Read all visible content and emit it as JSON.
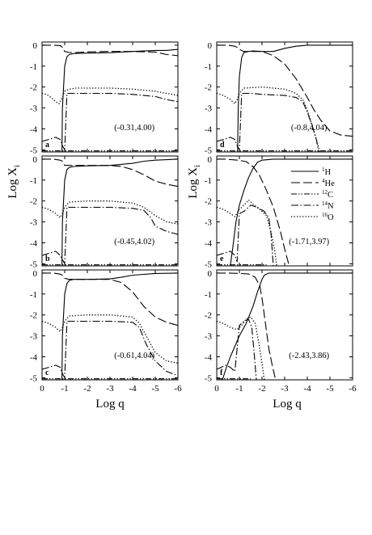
{
  "figure": {
    "ylabel_main": "Log X",
    "ylabel_sub": "i",
    "xlabel": "Log q"
  },
  "legend": [
    {
      "iso": "1",
      "el": "H",
      "dash": "solid"
    },
    {
      "iso": "4",
      "el": "He",
      "dash": "longdash"
    },
    {
      "iso": "12",
      "el": "C",
      "dash": "dashdotdot"
    },
    {
      "iso": "14",
      "el": "N",
      "dash": "dashdot"
    },
    {
      "iso": "16",
      "el": "O",
      "dash": "dotted"
    }
  ],
  "chart_data": [
    {
      "type": "line",
      "panel": "a",
      "annotation": "(-0.31,4.00)",
      "xlim": [
        0,
        -6
      ],
      "ylim": [
        -5.1,
        0.15
      ],
      "xticks": [
        0,
        -1,
        -2,
        -3,
        -4,
        -5,
        -6
      ],
      "yticks": [
        0,
        -1,
        -2,
        -3,
        -4,
        -5
      ],
      "series": [
        {
          "name": "1H",
          "x": [
            -0.88,
            -0.9,
            -1.0,
            -1.1,
            -1.2,
            -1.4,
            -2,
            -3,
            -4,
            -5,
            -5.5,
            -6
          ],
          "y": [
            -5.1,
            -3.0,
            -1.0,
            -0.55,
            -0.45,
            -0.4,
            -0.38,
            -0.36,
            -0.3,
            -0.25,
            -0.25,
            -0.2
          ]
        },
        {
          "name": "4He",
          "x": [
            0,
            -0.5,
            -0.8,
            -0.9,
            -1.0,
            -1.2,
            -1.5,
            -2,
            -3,
            -4,
            -5,
            -5.5,
            -6
          ],
          "y": [
            0,
            0,
            -0.02,
            -0.1,
            -0.3,
            -0.35,
            -0.35,
            -0.32,
            -0.3,
            -0.3,
            -0.33,
            -0.45,
            -0.5
          ]
        },
        {
          "name": "12C",
          "x": [
            0,
            -1,
            -2,
            -3,
            -4,
            -5,
            -6
          ],
          "y": [
            -5.05,
            -5.05,
            -5.05,
            -5.05,
            -5.05,
            -5.05,
            -5.05
          ]
        },
        {
          "name": "14N",
          "x": [
            0,
            -0.3,
            -0.6,
            -0.8,
            -0.9,
            -1.0,
            -1.1,
            -1.3,
            -1.6,
            -2,
            -2.5,
            -3,
            -4,
            -5,
            -5.5,
            -6
          ],
          "y": [
            -4.6,
            -4.5,
            -4.4,
            -4.5,
            -4.8,
            -5.0,
            -2.3,
            -2.3,
            -2.3,
            -2.3,
            -2.3,
            -2.3,
            -2.35,
            -2.45,
            -2.6,
            -2.7
          ]
        },
        {
          "name": "16O",
          "x": [
            0,
            -0.2,
            -0.4,
            -0.6,
            -0.75,
            -0.9,
            -1.0,
            -1.2,
            -1.5,
            -2,
            -3,
            -4,
            -5,
            -6
          ],
          "y": [
            -2.3,
            -2.35,
            -2.5,
            -2.7,
            -2.8,
            -2.5,
            -2.2,
            -2.1,
            -2.05,
            -2.05,
            -2.05,
            -2.1,
            -2.2,
            -2.4
          ]
        }
      ]
    },
    {
      "type": "line",
      "panel": "b",
      "annotation": "(-0.45,4.02)",
      "xlim": [
        0,
        -6
      ],
      "ylim": [
        -5.1,
        0.15
      ],
      "xticks": [
        0,
        -1,
        -2,
        -3,
        -4,
        -5,
        -6
      ],
      "yticks": [
        0,
        -1,
        -2,
        -3,
        -4,
        -5
      ],
      "series": [
        {
          "name": "1H",
          "x": [
            -0.88,
            -0.9,
            -1.0,
            -1.1,
            -1.2,
            -1.4,
            -2,
            -3,
            -4,
            -4.5,
            -5,
            -6
          ],
          "y": [
            -5.1,
            -3.0,
            -1.0,
            -0.5,
            -0.4,
            -0.35,
            -0.32,
            -0.3,
            -0.2,
            -0.1,
            -0.05,
            0
          ]
        },
        {
          "name": "4He",
          "x": [
            0,
            -0.5,
            -0.8,
            -0.9,
            -1.0,
            -1.2,
            -1.5,
            -2,
            -3,
            -3.5,
            -4,
            -4.5,
            -5,
            -5.5,
            -6
          ],
          "y": [
            0,
            0,
            -0.05,
            -0.1,
            -0.3,
            -0.3,
            -0.3,
            -0.3,
            -0.3,
            -0.35,
            -0.5,
            -0.75,
            -1.05,
            -1.2,
            -1.3
          ]
        },
        {
          "name": "12C",
          "x": [
            0,
            -1,
            -2,
            -3,
            -4,
            -5,
            -6
          ],
          "y": [
            -5.05,
            -5.05,
            -5.05,
            -5.05,
            -5.05,
            -5.05,
            -5.05
          ]
        },
        {
          "name": "14N",
          "x": [
            0,
            -0.3,
            -0.6,
            -0.8,
            -0.9,
            -1.0,
            -1.1,
            -1.5,
            -2,
            -3,
            -4,
            -4.5,
            -4.8,
            -5,
            -5.5,
            -6
          ],
          "y": [
            -4.6,
            -4.5,
            -4.4,
            -4.6,
            -4.8,
            -5.0,
            -2.3,
            -2.3,
            -2.3,
            -2.3,
            -2.35,
            -2.45,
            -2.8,
            -3.2,
            -3.45,
            -3.6
          ]
        },
        {
          "name": "16O",
          "x": [
            0,
            -0.3,
            -0.6,
            -0.8,
            -0.9,
            -1.0,
            -1.2,
            -2,
            -3,
            -4,
            -4.5,
            -5,
            -5.5,
            -6
          ],
          "y": [
            -2.3,
            -2.4,
            -2.6,
            -2.8,
            -2.6,
            -2.3,
            -2.05,
            -2.0,
            -2.0,
            -2.1,
            -2.3,
            -2.7,
            -3.0,
            -3.1
          ]
        }
      ]
    },
    {
      "type": "line",
      "panel": "c",
      "annotation": "(-0.61,4.04)",
      "xlim": [
        0,
        -6
      ],
      "ylim": [
        -5.1,
        0.15
      ],
      "xticks": [
        0,
        -1,
        -2,
        -3,
        -4,
        -5,
        -6
      ],
      "yticks": [
        0,
        -1,
        -2,
        -3,
        -4,
        -5
      ],
      "series": [
        {
          "name": "1H",
          "x": [
            -0.88,
            -0.9,
            -1.0,
            -1.1,
            -1.2,
            -1.4,
            -2,
            -3,
            -3.5,
            -4,
            -5,
            -6
          ],
          "y": [
            -5.1,
            -3.0,
            -1.0,
            -0.5,
            -0.35,
            -0.3,
            -0.3,
            -0.28,
            -0.2,
            -0.1,
            -0.02,
            0
          ]
        },
        {
          "name": "4He",
          "x": [
            0,
            -0.5,
            -0.8,
            -0.9,
            -1.0,
            -1.2,
            -2,
            -3,
            -3.5,
            -4,
            -4.5,
            -5,
            -5.5,
            -6
          ],
          "y": [
            0,
            0,
            -0.05,
            -0.1,
            -0.25,
            -0.3,
            -0.3,
            -0.3,
            -0.45,
            -0.9,
            -1.6,
            -2.1,
            -2.35,
            -2.5
          ]
        },
        {
          "name": "12C",
          "x": [
            0,
            -1,
            -2,
            -3,
            -4,
            -5,
            -6
          ],
          "y": [
            -5.05,
            -5.05,
            -5.05,
            -5.05,
            -5.05,
            -5.05,
            -5.05
          ]
        },
        {
          "name": "14N",
          "x": [
            0,
            -0.3,
            -0.6,
            -0.8,
            -0.9,
            -1.0,
            -1.1,
            -1.5,
            -2,
            -3,
            -4,
            -4.3,
            -4.6,
            -5,
            -5.5,
            -6
          ],
          "y": [
            -4.6,
            -4.5,
            -4.4,
            -4.5,
            -4.8,
            -5.0,
            -2.3,
            -2.3,
            -2.3,
            -2.3,
            -2.35,
            -2.6,
            -3.4,
            -4.2,
            -4.7,
            -4.9
          ]
        },
        {
          "name": "16O",
          "x": [
            0,
            -0.3,
            -0.6,
            -0.8,
            -0.9,
            -1.0,
            -1.2,
            -2,
            -3,
            -4,
            -4.3,
            -4.7,
            -5,
            -5.5,
            -6
          ],
          "y": [
            -2.3,
            -2.4,
            -2.6,
            -2.8,
            -2.6,
            -2.3,
            -2.05,
            -2.0,
            -2.0,
            -2.1,
            -2.4,
            -3.2,
            -3.8,
            -4.2,
            -4.3
          ]
        }
      ]
    },
    {
      "type": "line",
      "panel": "d",
      "annotation": "(-0.8,4.04)",
      "xlim": [
        0,
        -6
      ],
      "ylim": [
        -5.1,
        0.15
      ],
      "xticks": [
        0,
        -1,
        -2,
        -3,
        -4,
        -5,
        -6
      ],
      "yticks": [
        0,
        -1,
        -2,
        -3,
        -4,
        -5
      ],
      "series": [
        {
          "name": "1H",
          "x": [
            -0.92,
            -0.95,
            -1.0,
            -1.1,
            -1.2,
            -1.4,
            -1.6,
            -2,
            -2.5,
            -3,
            -3.5,
            -4,
            -4.5,
            -5,
            -6
          ],
          "y": [
            -5.1,
            -3.0,
            -1.5,
            -0.6,
            -0.35,
            -0.3,
            -0.28,
            -0.3,
            -0.3,
            -0.15,
            -0.05,
            0,
            0,
            0,
            0
          ]
        },
        {
          "name": "4He",
          "x": [
            0,
            -0.5,
            -0.8,
            -0.9,
            -1.0,
            -1.2,
            -2,
            -2.5,
            -3,
            -3.5,
            -4,
            -4.3,
            -4.6,
            -5,
            -5.5,
            -6
          ],
          "y": [
            0,
            0,
            -0.05,
            -0.1,
            -0.2,
            -0.3,
            -0.3,
            -0.5,
            -0.9,
            -1.6,
            -2.5,
            -3.1,
            -3.6,
            -4.1,
            -4.3,
            -4.35
          ]
        },
        {
          "name": "12C",
          "x": [
            0,
            -1,
            -2,
            -3,
            -4,
            -5,
            -6
          ],
          "y": [
            -5.05,
            -5.05,
            -5.05,
            -5.05,
            -5.05,
            -5.05,
            -5.05
          ]
        },
        {
          "name": "14N",
          "x": [
            0,
            -0.3,
            -0.6,
            -0.8,
            -0.9,
            -1.0,
            -1.1,
            -1.5,
            -2,
            -3,
            -3.5,
            -3.8,
            -4.0,
            -4.2,
            -4.4,
            -4.5
          ],
          "y": [
            -4.6,
            -4.5,
            -4.4,
            -4.5,
            -4.8,
            -5.0,
            -2.3,
            -2.3,
            -2.35,
            -2.4,
            -2.5,
            -2.7,
            -3.2,
            -3.8,
            -4.5,
            -5.1
          ]
        },
        {
          "name": "16O",
          "x": [
            0,
            -0.3,
            -0.6,
            -0.8,
            -0.9,
            -1.0,
            -1.2,
            -2,
            -3,
            -3.5,
            -3.8,
            -4.0,
            -4.2,
            -4.4,
            -4.55
          ],
          "y": [
            -2.3,
            -2.4,
            -2.6,
            -2.8,
            -2.6,
            -2.3,
            -2.05,
            -2.0,
            -2.1,
            -2.3,
            -2.6,
            -3.1,
            -3.8,
            -4.5,
            -5.1
          ]
        }
      ]
    },
    {
      "type": "line",
      "panel": "e",
      "annotation": "(-1.71,3.97)",
      "xlim": [
        0,
        -6
      ],
      "ylim": [
        -5.1,
        0.15
      ],
      "xticks": [
        0,
        -1,
        -2,
        -3,
        -4,
        -5,
        -6
      ],
      "yticks": [
        0,
        -1,
        -2,
        -3,
        -4,
        -5
      ],
      "series": [
        {
          "name": "1H",
          "x": [
            -0.6,
            -0.7,
            -0.85,
            -1.0,
            -1.2,
            -1.4,
            -1.6,
            -1.8,
            -2.0,
            -2.5,
            -3,
            -4,
            -5,
            -6
          ],
          "y": [
            -5.1,
            -4.3,
            -3.0,
            -2.2,
            -1.5,
            -0.9,
            -0.45,
            -0.15,
            -0.05,
            0,
            0,
            0,
            0,
            0
          ]
        },
        {
          "name": "4He",
          "x": [
            0,
            -0.4,
            -0.7,
            -1.0,
            -1.3,
            -1.6,
            -1.9,
            -2.2,
            -2.5,
            -2.8,
            -3.0,
            -3.2
          ],
          "y": [
            0,
            0,
            -0.03,
            -0.06,
            -0.12,
            -0.35,
            -0.8,
            -1.5,
            -2.3,
            -3.4,
            -4.3,
            -5.1
          ]
        },
        {
          "name": "12C",
          "x": [
            0,
            -0.5,
            -1.0,
            -1.5,
            -1.8,
            -2.0,
            -2.2
          ],
          "y": [
            -5.05,
            -5.05,
            -5.05,
            -5.05,
            -5.05,
            -5.05,
            -5.05
          ]
        },
        {
          "name": "14N",
          "x": [
            0,
            -0.3,
            -0.6,
            -0.8,
            -0.9,
            -1.0,
            -1.2,
            -1.5,
            -1.8,
            -2.1,
            -2.3,
            -2.4,
            -2.5
          ],
          "y": [
            -4.6,
            -4.5,
            -4.4,
            -4.6,
            -4.9,
            -2.6,
            -2.5,
            -2.2,
            -2.3,
            -2.5,
            -2.8,
            -3.6,
            -5.1
          ]
        },
        {
          "name": "16O",
          "x": [
            0,
            -0.3,
            -0.6,
            -0.8,
            -1.0,
            -1.2,
            -1.4,
            -1.6,
            -1.9,
            -2.2,
            -2.4,
            -2.55,
            -2.65
          ],
          "y": [
            -2.3,
            -2.4,
            -2.6,
            -2.75,
            -2.4,
            -2.2,
            -1.95,
            -2.15,
            -2.4,
            -2.7,
            -3.5,
            -4.3,
            -5.1
          ]
        }
      ]
    },
    {
      "type": "line",
      "panel": "f",
      "annotation": "(-2.43,3.86)",
      "xlim": [
        0,
        -6
      ],
      "ylim": [
        -5.1,
        0.15
      ],
      "xticks": [
        0,
        -1,
        -2,
        -3,
        -4,
        -5,
        -6
      ],
      "yticks": [
        0,
        -1,
        -2,
        -3,
        -4,
        -5
      ],
      "series": [
        {
          "name": "1H",
          "x": [
            -0.25,
            -0.4,
            -0.6,
            -0.8,
            -1.0,
            -1.3,
            -1.6,
            -1.8,
            -2.0,
            -2.1,
            -2.3,
            -2.6,
            -3,
            -4,
            -5,
            -6
          ],
          "y": [
            -5.1,
            -4.6,
            -4.0,
            -3.5,
            -3.0,
            -2.4,
            -1.6,
            -0.9,
            -0.3,
            -0.1,
            0,
            0,
            0,
            0,
            0,
            0
          ]
        },
        {
          "name": "4He",
          "x": [
            0,
            -0.5,
            -1.0,
            -1.4,
            -1.7,
            -1.9,
            -2.0,
            -2.1,
            -2.2,
            -2.3,
            -2.45,
            -2.6
          ],
          "y": [
            0,
            0,
            -0.02,
            -0.04,
            -0.2,
            -0.6,
            -1.2,
            -2.0,
            -2.8,
            -3.6,
            -4.4,
            -5.1
          ]
        },
        {
          "name": "12C",
          "x": [
            0,
            -0.5,
            -1.0,
            -1.3,
            -1.5
          ],
          "y": [
            -5.05,
            -5.05,
            -5.05,
            -5.05,
            -5.05
          ]
        },
        {
          "name": "14N",
          "x": [
            0,
            -0.2,
            -0.4,
            -0.6,
            -0.8,
            -1.0,
            -1.2,
            -1.4,
            -1.55,
            -1.65,
            -1.75
          ],
          "y": [
            -4.6,
            -4.5,
            -4.4,
            -4.5,
            -4.7,
            -2.5,
            -2.3,
            -2.2,
            -2.6,
            -3.8,
            -5.1
          ]
        },
        {
          "name": "16O",
          "x": [
            0,
            -0.3,
            -0.6,
            -0.9,
            -1.1,
            -1.3,
            -1.5,
            -1.7,
            -1.85,
            -2.0,
            -2.1
          ],
          "y": [
            -2.3,
            -2.4,
            -2.6,
            -2.7,
            -2.5,
            -2.2,
            -2.1,
            -2.4,
            -3.3,
            -4.3,
            -5.1
          ]
        }
      ]
    }
  ]
}
